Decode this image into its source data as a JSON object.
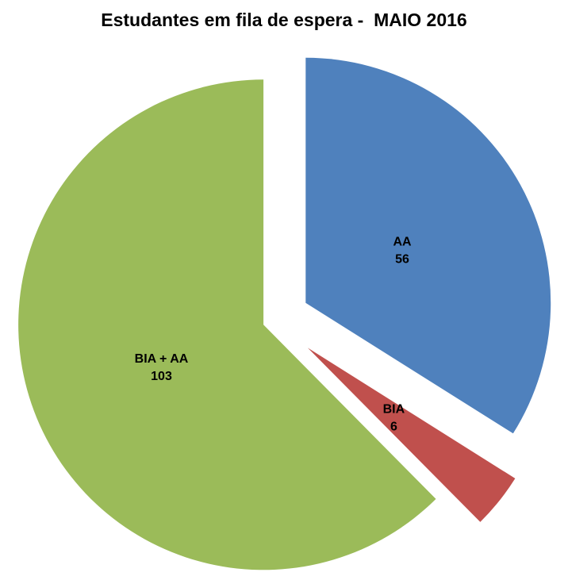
{
  "title": "Estudantes em fila de espera -  MAIO 2016",
  "chart_data": {
    "type": "pie",
    "title": "Estudantes em fila de espera -  MAIO 2016",
    "categories": [
      "AA",
      "BIA",
      "BIA + AA"
    ],
    "values": [
      56,
      6,
      103
    ],
    "total": 165,
    "start_angle_deg": 0,
    "direction": "clockwise",
    "exploded": true,
    "legend": "none",
    "background": "#ffffff",
    "label_format": "name_newline_value",
    "slices": [
      {
        "label": "AA",
        "value": 56,
        "color": "#4F81BD",
        "explode": 46
      },
      {
        "label": "BIA",
        "value": 6,
        "color": "#C0504D",
        "explode": 55
      },
      {
        "label": "BIA + AA",
        "value": 103,
        "color": "#9BBB59",
        "explode": 14
      }
    ]
  }
}
